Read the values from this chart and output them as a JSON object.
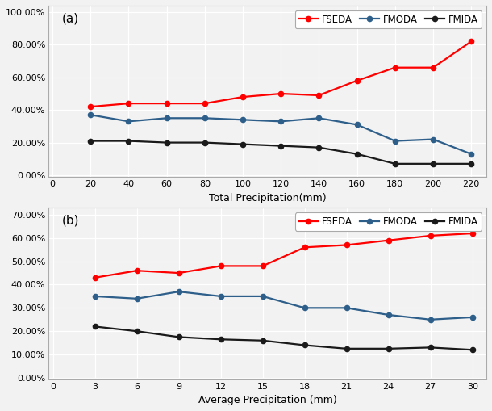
{
  "plot_a": {
    "x": [
      20,
      40,
      60,
      80,
      100,
      120,
      140,
      160,
      180,
      200,
      220
    ],
    "FSEDA": [
      0.42,
      0.44,
      0.44,
      0.44,
      0.48,
      0.5,
      0.49,
      0.58,
      0.66,
      0.66,
      0.82
    ],
    "FMODA": [
      0.37,
      0.33,
      0.35,
      0.35,
      0.34,
      0.33,
      0.35,
      0.31,
      0.21,
      0.22,
      0.13
    ],
    "FMIDA": [
      0.21,
      0.21,
      0.2,
      0.2,
      0.19,
      0.18,
      0.17,
      0.13,
      0.07,
      0.07,
      0.07
    ],
    "xlabel": "Total Precipitation(mm)",
    "yticks": [
      0.0,
      0.2,
      0.4,
      0.6,
      0.8,
      1.0
    ],
    "ytick_labels": [
      "0.00%",
      "20.00%",
      "40.00%",
      "60.00%",
      "80.00%",
      "100.00%"
    ],
    "xticks": [
      0,
      20,
      40,
      60,
      80,
      100,
      120,
      140,
      160,
      180,
      200,
      220
    ],
    "ylim": [
      -0.01,
      1.04
    ],
    "xlim": [
      -2,
      228
    ],
    "label": "(a)"
  },
  "plot_b": {
    "x": [
      3,
      6,
      9,
      12,
      15,
      18,
      21,
      24,
      27,
      30
    ],
    "FSEDA": [
      0.43,
      0.46,
      0.45,
      0.48,
      0.48,
      0.56,
      0.57,
      0.59,
      0.61,
      0.62
    ],
    "FMODA": [
      0.35,
      0.34,
      0.37,
      0.35,
      0.35,
      0.3,
      0.3,
      0.27,
      0.25,
      0.26
    ],
    "FMIDA": [
      0.22,
      0.2,
      0.175,
      0.165,
      0.16,
      0.14,
      0.125,
      0.125,
      0.13,
      0.12
    ],
    "xlabel": "Average Precipitation (mm)",
    "yticks": [
      0.0,
      0.1,
      0.2,
      0.3,
      0.4,
      0.5,
      0.6,
      0.7
    ],
    "ytick_labels": [
      "0.00%",
      "10.00%",
      "20.00%",
      "30.00%",
      "40.00%",
      "50.00%",
      "60.00%",
      "70.00%"
    ],
    "xticks": [
      0,
      3,
      6,
      9,
      12,
      15,
      18,
      21,
      24,
      27,
      30
    ],
    "ylim": [
      -0.005,
      0.73
    ],
    "xlim": [
      -0.3,
      31
    ],
    "label": "(b)"
  },
  "colors": {
    "FSEDA": "#FF0000",
    "FMODA": "#2E5F8A",
    "FMIDA": "#1A1A1A"
  },
  "marker": "o",
  "linewidth": 1.6,
  "markersize": 4.5,
  "legend_fontsize": 8.5,
  "tick_fontsize": 8,
  "axis_label_fontsize": 9,
  "panel_label_fontsize": 11,
  "bg_color": "#F2F2F2",
  "plot_bg_color": "#F2F2F2",
  "grid_color": "#FFFFFF",
  "spine_color": "#AAAAAA"
}
